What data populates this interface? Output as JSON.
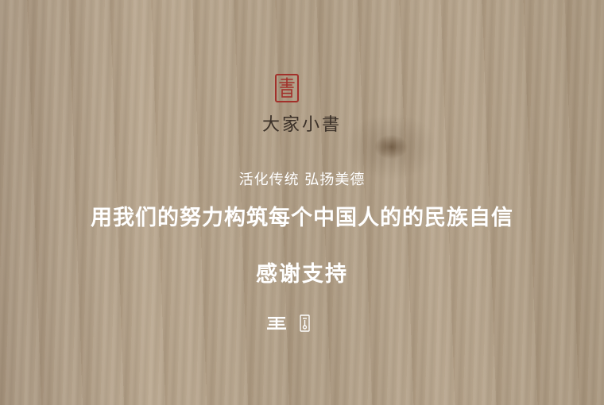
{
  "brand": {
    "name": "大家小書"
  },
  "slogan": {
    "line1": "活化传统 弘扬美德",
    "line2": "用我们的努力构筑每个中国人的的民族自信"
  },
  "thanks": "感谢支持",
  "icons": {
    "seal": "seal-stamp-icon",
    "left": "book-stack-icon",
    "right": "bookmark-icon"
  },
  "colors": {
    "seal_red": "#a2302a",
    "text_white": "#ffffff",
    "brand_dark": "#3a3028"
  }
}
